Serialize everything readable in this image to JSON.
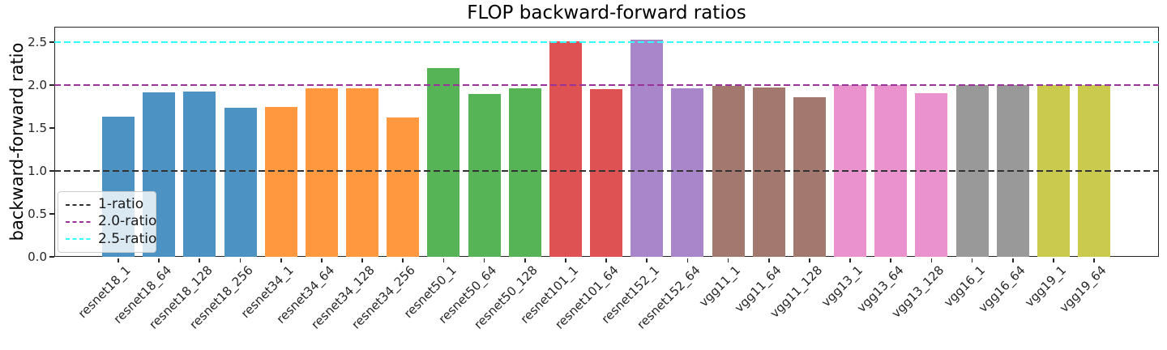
{
  "chart_data": {
    "type": "bar",
    "title": "FLOP backward-forward ratios",
    "ylabel": "backward-forward ratio",
    "xlabel": "",
    "ylim": [
      0,
      2.68
    ],
    "yticks": [
      0.0,
      0.5,
      1.0,
      1.5,
      2.0,
      2.5
    ],
    "grid": false,
    "legend_position": "lower left",
    "categories": [
      "resnet18_1",
      "resnet18_64",
      "resnet18_128",
      "resnet18_256",
      "resnet34_1",
      "resnet34_64",
      "resnet34_128",
      "resnet34_256",
      "resnet50_1",
      "resnet50_64",
      "resnet50_128",
      "resnet101_1",
      "resnet101_64",
      "resnet152_1",
      "resnet152_64",
      "vgg11_1",
      "vgg11_64",
      "vgg11_128",
      "vgg13_1",
      "vgg13_64",
      "vgg13_128",
      "vgg16_1",
      "vgg16_64",
      "vgg19_1",
      "vgg19_64"
    ],
    "values": [
      1.63,
      1.92,
      1.93,
      1.74,
      1.75,
      1.96,
      1.96,
      1.62,
      2.2,
      1.9,
      1.96,
      2.51,
      1.95,
      2.53,
      1.96,
      1.99,
      1.97,
      1.86,
      2.0,
      2.0,
      1.91,
      2.0,
      2.0,
      2.0,
      2.0
    ],
    "bar_colors": [
      "#4C92C3",
      "#4C92C3",
      "#4C92C3",
      "#4C92C3",
      "#FF983E",
      "#FF983E",
      "#FF983E",
      "#FF983E",
      "#56B356",
      "#56B356",
      "#56B356",
      "#DE5253",
      "#DE5253",
      "#A985CA",
      "#A985CA",
      "#A3786F",
      "#A3786F",
      "#A3786F",
      "#E992CE",
      "#E992CE",
      "#E992CE",
      "#999999",
      "#999999",
      "#C9CA4E",
      "#C9CA4E"
    ],
    "ref_lines": [
      {
        "y": 1.0,
        "label": "1-ratio",
        "color": "#333333",
        "style": "dashed"
      },
      {
        "y": 2.0,
        "label": "2.0-ratio",
        "color": "#993399",
        "style": "dashed"
      },
      {
        "y": 2.5,
        "label": "2.5-ratio",
        "color": "#33FFFF",
        "style": "dashed"
      }
    ]
  }
}
